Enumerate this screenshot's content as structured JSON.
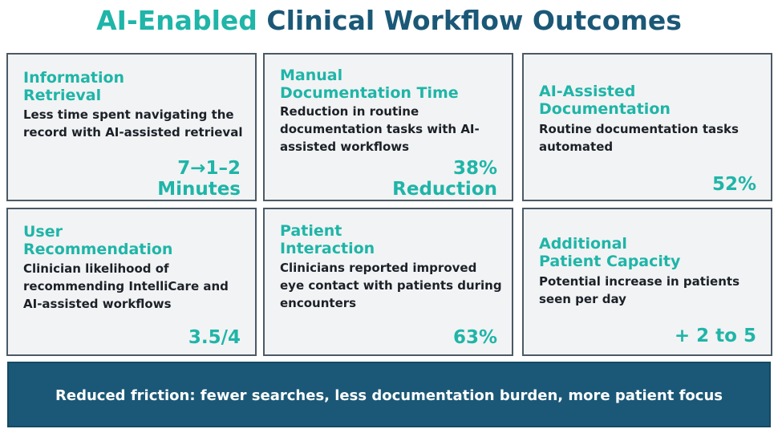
{
  "title": {
    "accent": "AI-Enabled",
    "main": "Clinical Workflow Outcomes"
  },
  "cards": [
    {
      "heading_line1": "Information",
      "heading_line2": "Retrieval",
      "description": "Less time spent navigating the record with AI-assisted retrieval",
      "metric_line1": "7→1–2",
      "metric_line2": "Minutes"
    },
    {
      "heading_line1": "Manual",
      "heading_line2": "Documentation Time",
      "description": "Reduction in routine documentation tasks with AI-assisted workflows",
      "metric_line1": "38%",
      "metric_line2": "Reduction"
    },
    {
      "heading_line1": "AI-Assisted",
      "heading_line2": "Documentation",
      "description": "Routine documentation tasks automated",
      "metric_line1": "52%"
    },
    {
      "heading_line1": "User",
      "heading_line2": "Recommendation",
      "description": "Clinician likelihood of recommending IntelliCare and AI-assisted workflows",
      "metric_line1": "3.5/4"
    },
    {
      "heading_line1": "Patient",
      "heading_line2": "Interaction",
      "description": "Clinicians reported improved eye contact with patients during encounters",
      "metric_line1": "63%"
    },
    {
      "heading_line1": "Additional",
      "heading_line2": "Patient Capacity",
      "description": "Potential increase in patients seen per day",
      "metric_line1": "+ 2 to 5"
    }
  ],
  "banner": {
    "text": "Reduced friction: fewer searches, less documentation burden, more patient focus"
  },
  "colors": {
    "accent": "#1fb5a8",
    "primary": "#1b5877",
    "card_background": "#f2f3f4",
    "card_border": "#4b5a66"
  }
}
